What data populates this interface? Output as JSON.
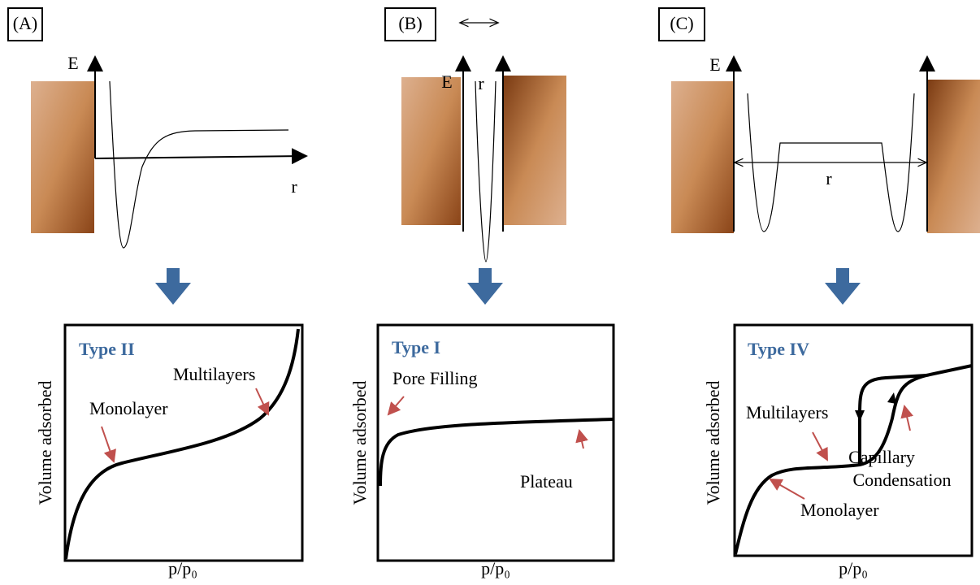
{
  "panels": [
    {
      "label": "(A)",
      "energy_axis": "E",
      "distance_axis": "r",
      "isotherm": {
        "title": "Type II",
        "y_label": "Volume adsorbed",
        "x_label": "p/p₀",
        "annotations": [
          "Monolayer",
          "Multilayers"
        ]
      }
    },
    {
      "label": "(B)",
      "energy_axis": "E",
      "distance_axis": "r",
      "isotherm": {
        "title": "Type I",
        "y_label": "Volume adsorbed",
        "x_label": "p/p₀",
        "annotations": [
          "Pore Filling",
          "Plateau"
        ]
      }
    },
    {
      "label": "(C)",
      "energy_axis": "E",
      "distance_axis": "r",
      "isotherm": {
        "title": "Type IV",
        "y_label": "Volume adsorbed",
        "x_label": "p/p₀",
        "annotations": [
          "Multilayers",
          "Capillary",
          "Condensation",
          "Monolayer"
        ]
      }
    }
  ]
}
